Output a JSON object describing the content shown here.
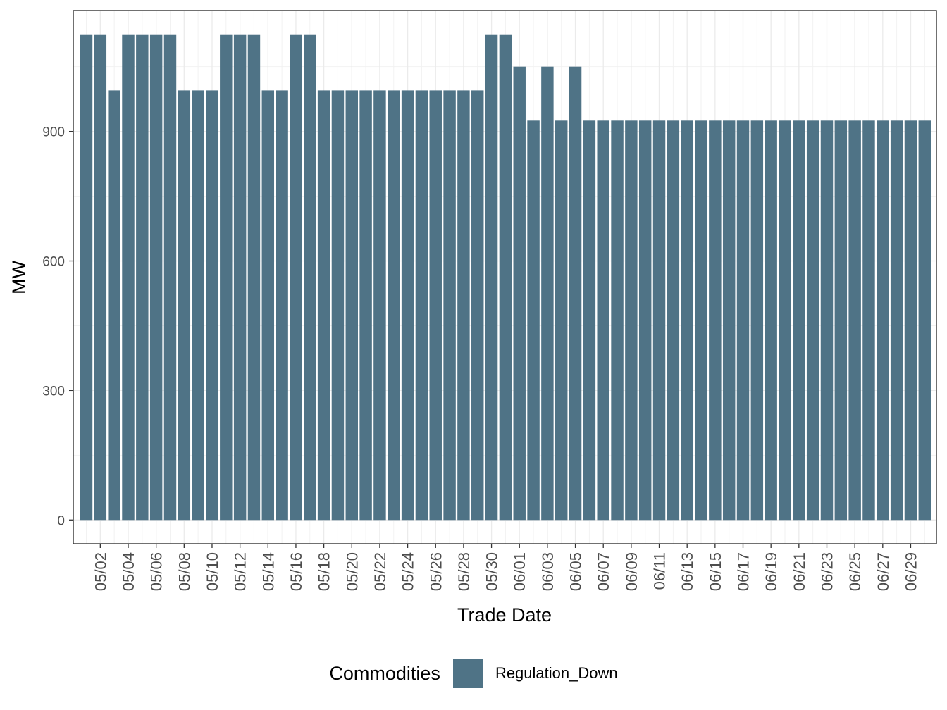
{
  "chart_data": {
    "type": "bar",
    "title": "",
    "xlabel": "Trade Date",
    "ylabel": "MW",
    "ylim": [
      -55,
      1180
    ],
    "yticks": [
      0,
      300,
      600,
      900
    ],
    "bar_color": "#4f7386",
    "legend": {
      "title": "Commodities",
      "position": "bottom"
    },
    "categories": [
      "05/01",
      "05/02",
      "05/03",
      "05/04",
      "05/05",
      "05/06",
      "05/07",
      "05/08",
      "05/09",
      "05/10",
      "05/11",
      "05/12",
      "05/13",
      "05/14",
      "05/15",
      "05/16",
      "05/17",
      "05/18",
      "05/19",
      "05/20",
      "05/21",
      "05/22",
      "05/23",
      "05/24",
      "05/25",
      "05/26",
      "05/27",
      "05/28",
      "05/29",
      "05/30",
      "05/31",
      "06/01",
      "06/02",
      "06/03",
      "06/04",
      "06/05",
      "06/06",
      "06/07",
      "06/08",
      "06/09",
      "06/10",
      "06/11",
      "06/12",
      "06/13",
      "06/14",
      "06/15",
      "06/16",
      "06/17",
      "06/18",
      "06/19",
      "06/20",
      "06/21",
      "06/22",
      "06/23",
      "06/24",
      "06/25",
      "06/26",
      "06/27",
      "06/28",
      "06/29",
      "06/30"
    ],
    "x_tick_labels": [
      "05/02",
      "05/04",
      "05/06",
      "05/08",
      "05/10",
      "05/12",
      "05/14",
      "05/16",
      "05/18",
      "05/20",
      "05/22",
      "05/24",
      "05/26",
      "05/28",
      "05/30",
      "06/01",
      "06/03",
      "06/05",
      "06/07",
      "06/09",
      "06/11",
      "06/13",
      "06/15",
      "06/17",
      "06/19",
      "06/21",
      "06/23",
      "06/25",
      "06/27",
      "06/29"
    ],
    "series": [
      {
        "name": "Regulation_Down",
        "values": [
          1125,
          1125,
          995,
          1125,
          1125,
          1125,
          1125,
          995,
          995,
          995,
          1125,
          1125,
          1125,
          995,
          995,
          1125,
          1125,
          995,
          995,
          995,
          995,
          995,
          995,
          995,
          995,
          995,
          995,
          995,
          995,
          1125,
          1125,
          1050,
          925,
          1050,
          925,
          1050,
          925,
          925,
          925,
          925,
          925,
          925,
          925,
          925,
          925,
          925,
          925,
          925,
          925,
          925,
          925,
          925,
          925,
          925,
          925,
          925,
          925,
          925,
          925,
          925,
          925
        ]
      }
    ]
  }
}
